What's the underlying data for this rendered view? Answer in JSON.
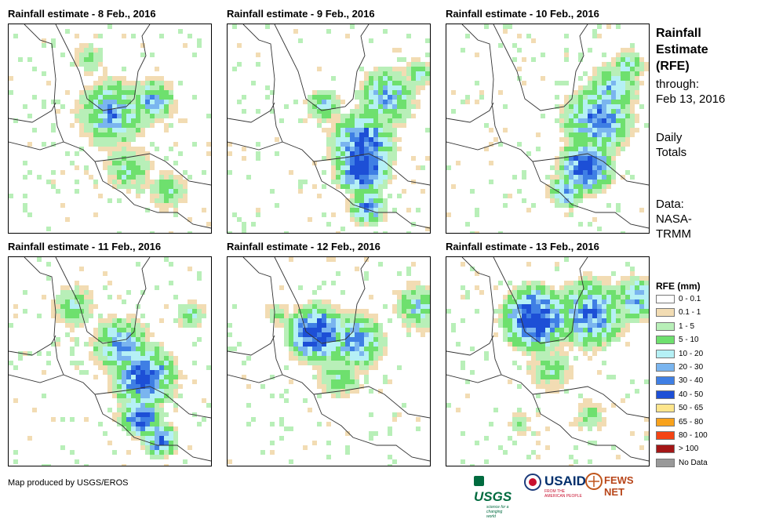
{
  "panels": [
    {
      "title": "Rainfall estimate - 8 Feb., 2016",
      "blobs": [
        [
          130,
          110,
          60,
          0.55,
          3
        ],
        [
          180,
          95,
          40,
          0.5,
          2
        ],
        [
          150,
          180,
          40,
          0.4,
          2
        ],
        [
          200,
          210,
          35,
          0.35,
          2
        ],
        [
          100,
          40,
          30,
          0.3,
          1
        ]
      ]
    },
    {
      "title": "Rainfall estimate - 9 Feb., 2016",
      "blobs": [
        [
          170,
          180,
          45,
          0.9,
          6
        ],
        [
          170,
          150,
          55,
          0.75,
          4
        ],
        [
          200,
          90,
          50,
          0.55,
          3
        ],
        [
          120,
          100,
          30,
          0.45,
          3
        ],
        [
          175,
          230,
          30,
          0.7,
          5
        ],
        [
          240,
          60,
          25,
          0.4,
          3
        ]
      ]
    },
    {
      "title": "Rainfall estimate - 10 Feb., 2016",
      "blobs": [
        [
          175,
          180,
          45,
          0.85,
          6
        ],
        [
          190,
          120,
          60,
          0.65,
          4
        ],
        [
          210,
          80,
          45,
          0.5,
          3
        ],
        [
          230,
          50,
          30,
          0.4,
          2
        ],
        [
          150,
          210,
          30,
          0.6,
          4
        ]
      ]
    },
    {
      "title": "Rainfall estimate - 11 Feb., 2016",
      "blobs": [
        [
          170,
          150,
          55,
          0.75,
          5
        ],
        [
          165,
          200,
          35,
          0.8,
          6
        ],
        [
          140,
          110,
          50,
          0.55,
          3
        ],
        [
          190,
          230,
          30,
          0.7,
          5
        ],
        [
          80,
          60,
          40,
          0.35,
          2
        ],
        [
          230,
          70,
          25,
          0.4,
          2
        ]
      ]
    },
    {
      "title": "Rainfall estimate - 12 Feb., 2016",
      "blobs": [
        [
          110,
          95,
          50,
          0.85,
          6
        ],
        [
          160,
          105,
          50,
          0.6,
          4
        ],
        [
          240,
          60,
          40,
          0.45,
          3
        ],
        [
          140,
          150,
          40,
          0.35,
          2
        ],
        [
          60,
          70,
          25,
          0.3,
          1
        ]
      ]
    },
    {
      "title": "Rainfall estimate - 13 Feb., 2016",
      "blobs": [
        [
          110,
          75,
          55,
          0.9,
          7
        ],
        [
          180,
          70,
          60,
          0.65,
          4
        ],
        [
          240,
          50,
          40,
          0.55,
          4
        ],
        [
          130,
          140,
          40,
          0.35,
          2
        ],
        [
          180,
          200,
          30,
          0.3,
          2
        ],
        [
          90,
          210,
          20,
          0.3,
          2
        ]
      ]
    }
  ],
  "side": {
    "title_lines": [
      "Rainfall",
      "Estimate",
      "(RFE)"
    ],
    "through_lines": [
      "through:",
      "Feb 13, 2016"
    ],
    "totals_lines": [
      "Daily",
      "Totals"
    ],
    "data_lines": [
      "Data:",
      "NASA-",
      "TRMM"
    ]
  },
  "legend": {
    "title": "RFE (mm)",
    "items": [
      {
        "label": "0 - 0.1",
        "color": "#ffffff"
      },
      {
        "label": "0.1 - 1",
        "color": "#f2dcb3"
      },
      {
        "label": "1 - 5",
        "color": "#b8efb8"
      },
      {
        "label": "5 - 10",
        "color": "#6ee06e"
      },
      {
        "label": "10 - 20",
        "color": "#b5f0f5"
      },
      {
        "label": "20 - 30",
        "color": "#7ab5ef"
      },
      {
        "label": "30 - 40",
        "color": "#3f7fe4"
      },
      {
        "label": "40 - 50",
        "color": "#1d4fd6"
      },
      {
        "label": "50 - 65",
        "color": "#fde58c"
      },
      {
        "label": "65 - 80",
        "color": "#f8a21c"
      },
      {
        "label": "80 - 100",
        "color": "#f44414"
      },
      {
        "label": "> 100",
        "color": "#a41616"
      },
      {
        "label": "No Data",
        "color": "#999999"
      }
    ]
  },
  "footer": {
    "credit": "Map produced by USGS/EROS"
  },
  "logos": {
    "usgs": "USGS",
    "usgs_tagline": "science for a changing world",
    "usaid": "USAID",
    "usaid_tagline": "FROM THE AMERICAN PEOPLE",
    "fews": "FEWS NET"
  }
}
